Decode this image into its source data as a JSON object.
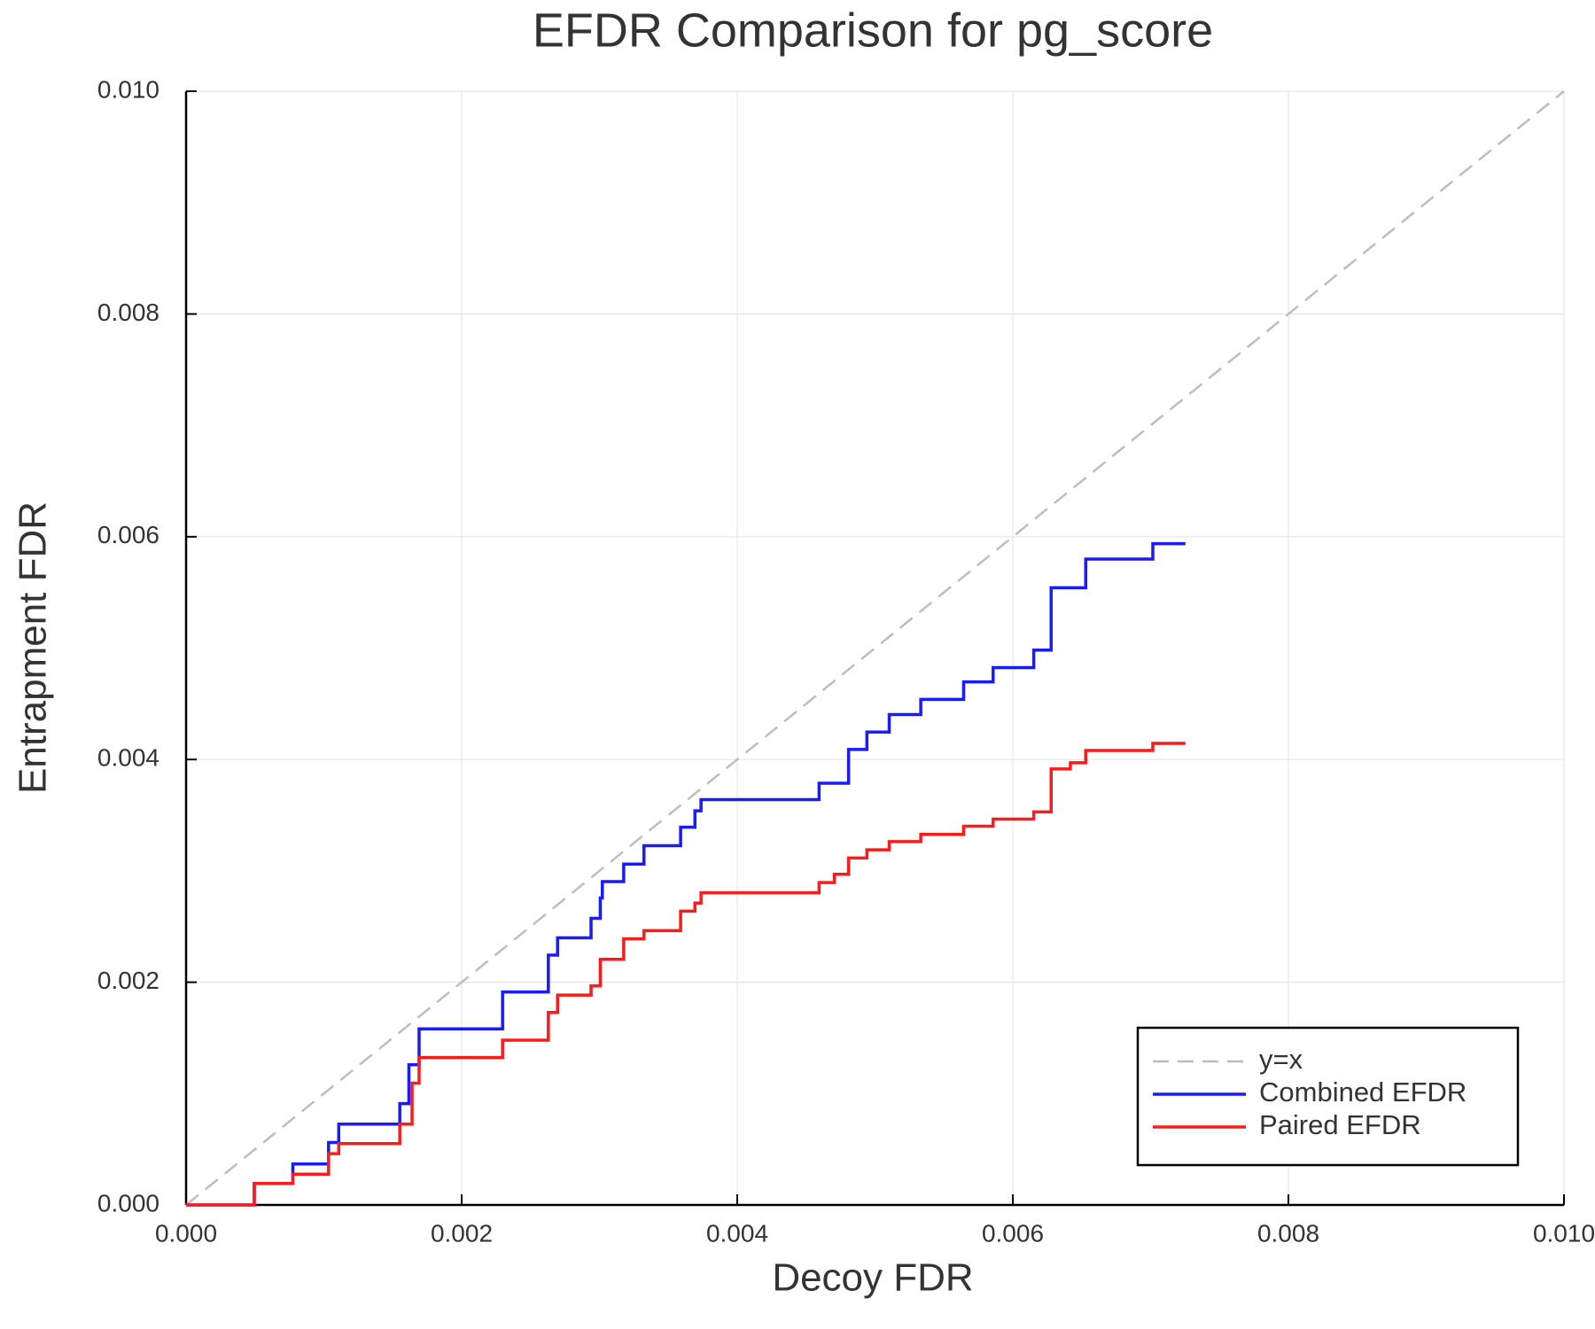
{
  "chart_data": {
    "type": "line",
    "title": "EFDR Comparison for pg_score",
    "x_label": "Decoy FDR",
    "y_label": "Entrapment FDR",
    "xlim": [
      0,
      0.01
    ],
    "ylim": [
      0,
      0.01
    ],
    "xticks": [
      {
        "value": 0,
        "label": "0.000"
      },
      0.002,
      0.004,
      0.006,
      0.008,
      {
        "value": 0.01,
        "label": "0.010"
      }
    ],
    "yticks": [
      {
        "value": 0,
        "label": "0.000"
      },
      0.002,
      0.004,
      0.006,
      0.008,
      {
        "value": 0.01,
        "label": "0.010"
      }
    ],
    "grid": true,
    "legend": "lower-right",
    "series": [
      {
        "name": "y=x",
        "color": "#bdbdbd",
        "line_style": "dashed",
        "x": [
          0,
          0.01
        ],
        "values": [
          0,
          0.01
        ]
      },
      {
        "name": "Combined EFDR",
        "color": "#1a1aff",
        "step": "post",
        "x": [
          0,
          0.000495,
          0.000775,
          0.001034,
          0.001108,
          0.001551,
          0.001617,
          0.001691,
          0.002297,
          0.002629,
          0.002696,
          0.002939,
          0.003006,
          0.003021,
          0.003176,
          0.003323,
          0.003589,
          0.003693,
          0.003737,
          0.004594,
          0.004808,
          0.004941,
          0.005103,
          0.005332,
          0.005643,
          0.005857,
          0.006152,
          0.006278,
          0.006529,
          0.007016,
          0.007253
        ],
        "values": [
          0,
          0.000193,
          0.000368,
          0.000561,
          0.000726,
          0.00091,
          0.001259,
          0.001581,
          0.001912,
          0.002243,
          0.002399,
          0.002574,
          0.002757,
          0.002904,
          0.003061,
          0.003226,
          0.003392,
          0.003539,
          0.00364,
          0.003787,
          0.00409,
          0.004246,
          0.004403,
          0.00454,
          0.004697,
          0.004825,
          0.004982,
          0.005542,
          0.0058,
          0.005938,
          0.005938
        ]
      },
      {
        "name": "Paired EFDR",
        "color": "#ff1a1a",
        "step": "post",
        "x": [
          0,
          0.000495,
          0.000775,
          0.001034,
          0.001108,
          0.001551,
          0.00164,
          0.001691,
          0.002297,
          0.002629,
          0.002696,
          0.002939,
          0.003006,
          0.003176,
          0.003323,
          0.003589,
          0.003693,
          0.003737,
          0.004594,
          0.004705,
          0.004808,
          0.004941,
          0.005103,
          0.005332,
          0.005643,
          0.005857,
          0.006152,
          0.006278,
          0.006418,
          0.006529,
          0.007016,
          0.007253
        ],
        "values": [
          0,
          0.000193,
          0.000276,
          0.00046,
          0.000551,
          0.000726,
          0.001094,
          0.001324,
          0.00148,
          0.001728,
          0.001884,
          0.001967,
          0.002206,
          0.00239,
          0.002463,
          0.002638,
          0.002711,
          0.002803,
          0.002895,
          0.002969,
          0.003116,
          0.003189,
          0.003263,
          0.003327,
          0.003401,
          0.003465,
          0.003529,
          0.003915,
          0.003971,
          0.004081,
          0.004145,
          0.004145
        ]
      }
    ]
  }
}
